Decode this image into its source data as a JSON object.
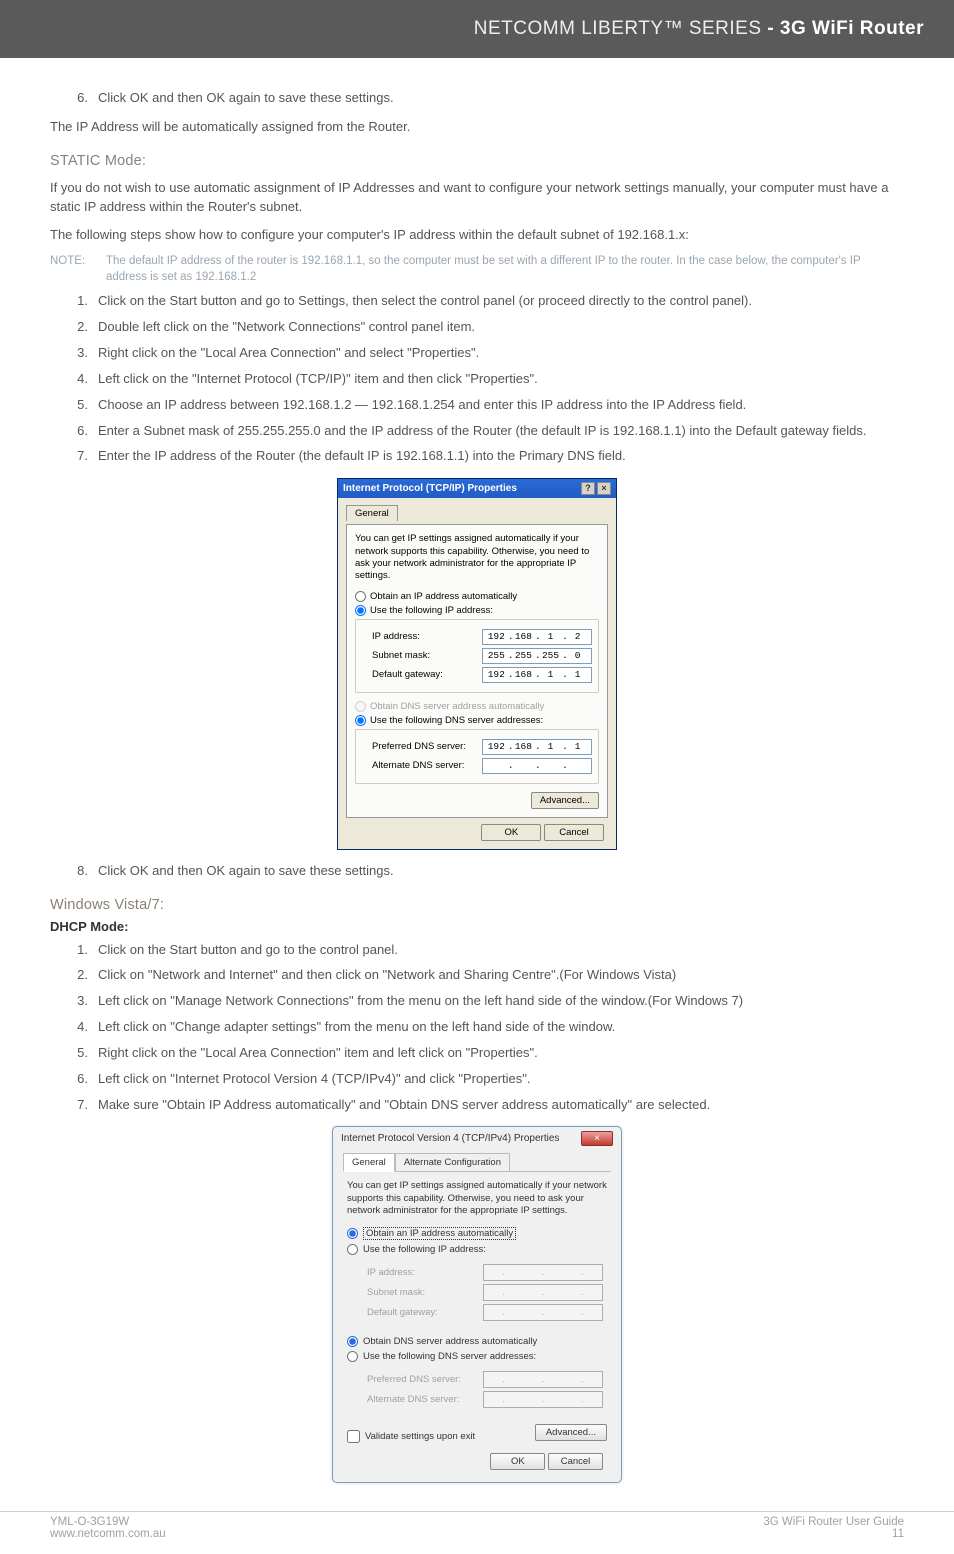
{
  "banner": {
    "series": "NETCOMM LIBERTY™ SERIES",
    "product": " - 3G WiFi Router"
  },
  "intro_step6": "Click OK and then OK again to save these settings.",
  "intro_after": "The IP Address will be automatically assigned from the Router.",
  "static": {
    "heading": "STATIC Mode:",
    "para1": "If you do not wish to use automatic assignment of IP Addresses and want to configure your network settings manually, your computer must have a static IP address within the Router's subnet.",
    "para2": "The following steps show how to configure your computer's IP address within the default subnet of 192.168.1.x:",
    "note": "The default IP address of the router is 192.168.1.1, so the computer must be set with a different IP to the router. In the case below, the computer's IP address is set as 192.168.1.2",
    "steps": [
      "Click on the Start button and go to Settings, then select the control panel (or proceed directly to the control panel).",
      "Double left click on the \"Network Connections\" control panel item.",
      "Right click on the \"Local Area Connection\" and select \"Properties\".",
      "Left click on the \"Internet Protocol (TCP/IP)\" item and then click \"Properties\".",
      "Choose an IP address between 192.168.1.2 — 192.168.1.254 and enter this IP address into the IP Address field.",
      "Enter a Subnet mask of 255.255.255.0 and the IP address of the Router (the default IP is 192.168.1.1) into the Default gateway fields.",
      "Enter the IP address of the Router (the default IP is 192.168.1.1) into the Primary DNS field."
    ],
    "step8": "Click OK and then OK again to save these settings."
  },
  "vista": {
    "heading": "Windows Vista/7:",
    "mode": "DHCP Mode:",
    "steps": [
      "Click on the Start button and go to the control panel.",
      "Click on \"Network and Internet\" and then click on \"Network and Sharing Centre\".(For Windows Vista)",
      "Left click on \"Manage Network Connections\" from the menu on the left hand side of the window.(For Windows 7)",
      "Left click on \"Change adapter settings\" from the menu on the left hand side of the window.",
      "Right click on the \"Local Area Connection\" item and left click on \"Properties\".",
      "Left click on \"Internet Protocol Version 4 (TCP/IPv4)\" and click \"Properties\".",
      "Make sure \"Obtain IP Address automatically\" and \"Obtain DNS server address automatically\" are selected."
    ]
  },
  "xp_dialog": {
    "title": "Internet Protocol (TCP/IP) Properties",
    "tab": "General",
    "desc": "You can get IP settings assigned automatically if your network supports this capability. Otherwise, you need to ask your network administrator for the appropriate IP settings.",
    "radio_auto_ip": "Obtain an IP address automatically",
    "radio_use_ip": "Use the following IP address:",
    "ip_label": "IP address:",
    "ip": [
      "192",
      "168",
      "1",
      "2"
    ],
    "subnet_label": "Subnet mask:",
    "subnet": [
      "255",
      "255",
      "255",
      "0"
    ],
    "gateway_label": "Default gateway:",
    "gateway": [
      "192",
      "168",
      "1",
      "1"
    ],
    "radio_auto_dns": "Obtain DNS server address automatically",
    "radio_use_dns": "Use the following DNS server addresses:",
    "pdns_label": "Preferred DNS server:",
    "pdns": [
      "192",
      "168",
      "1",
      "1"
    ],
    "adns_label": "Alternate DNS server:",
    "advanced": "Advanced...",
    "ok": "OK",
    "cancel": "Cancel"
  },
  "v7_dialog": {
    "title": "Internet Protocol Version 4 (TCP/IPv4) Properties",
    "tab1": "General",
    "tab2": "Alternate Configuration",
    "desc": "You can get IP settings assigned automatically if your network supports this capability. Otherwise, you need to ask your network administrator for the appropriate IP settings.",
    "radio_auto_ip": "Obtain an IP address automatically",
    "radio_use_ip": "Use the following IP address:",
    "ip_label": "IP address:",
    "subnet_label": "Subnet mask:",
    "gateway_label": "Default gateway:",
    "radio_auto_dns": "Obtain DNS server address automatically",
    "radio_use_dns": "Use the following DNS server addresses:",
    "pdns_label": "Preferred DNS server:",
    "adns_label": "Alternate DNS server:",
    "validate": "Validate settings upon exit",
    "advanced": "Advanced...",
    "ok": "OK",
    "cancel": "Cancel"
  },
  "footer": {
    "left1": "YML-O-3G19W",
    "left2": "www.netcomm.com.au",
    "right1": "3G WiFi Router User Guide",
    "right2": "11"
  },
  "note_label": "NOTE:"
}
